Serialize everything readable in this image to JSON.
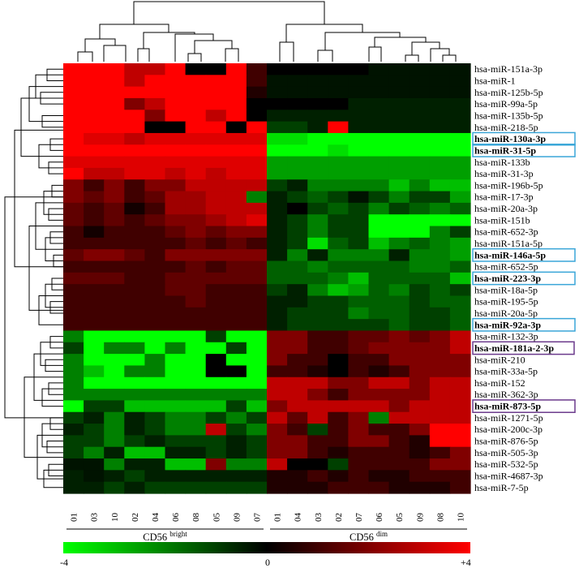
{
  "chart_data": {
    "type": "heatmap",
    "groups": [
      {
        "name": "CD56",
        "sup": "bright",
        "columns": [
          "01",
          "03",
          "10",
          "02",
          "04",
          "06",
          "08",
          "05",
          "09",
          "07"
        ]
      },
      {
        "name": "CD56",
        "sup": "dim",
        "columns": [
          "01",
          "04",
          "03",
          "02",
          "07",
          "06",
          "05",
          "09",
          "08",
          "10"
        ]
      }
    ],
    "columns": [
      "01",
      "03",
      "10",
      "02",
      "04",
      "06",
      "08",
      "05",
      "09",
      "07",
      "01",
      "04",
      "03",
      "02",
      "07",
      "06",
      "05",
      "09",
      "08",
      "10"
    ],
    "rows": [
      "hsa-miR-151a-3p",
      "hsa-miR-1",
      "hsa-miR-125b-5p",
      "hsa-miR-99a-5p",
      "hsa-miR-135b-5p",
      "hsa-miR-218-5p",
      "hsa-miR-130a-3p",
      "hsa-miR-31-5p",
      "hsa-miR-133b",
      "hsa-miR-31-3p",
      "hsa-miR-196b-5p",
      "hsa-miR-17-3p",
      "hsa-miR-20a-3p",
      "hsa-miR-151b",
      "hsa-miR-652-3p",
      "hsa-miR-151a-5p",
      "hsa-miR-146a-5p",
      "hsa-miR-652-5p",
      "hsa-miR-223-3p",
      "hsa-miR-18a-5p",
      "hsa-miR-195-5p",
      "hsa-miR-20a-5p",
      "hsa-miR-92a-3p",
      "hsa-miR-132-3p",
      "hsa-miR-181a-2-3p",
      "hsa-miR-210",
      "hsa-miR-33a-5p",
      "hsa-miR-152",
      "hsa-miR-362-3p",
      "hsa-miR-873-5p",
      "hsa-miR-1271-5p",
      "hsa-miR-200c-3p",
      "hsa-miR-876-5p",
      "hsa-miR-505-3p",
      "hsa-miR-532-5p",
      "hsa-miR-4687-3p",
      "hsa-miR-7-5p"
    ],
    "highlighted_rows": [
      {
        "label": "hsa-miR-130a-3p",
        "color": "#3aa6d8"
      },
      {
        "label": "hsa-miR-31-5p",
        "color": "#3aa6d8"
      },
      {
        "label": "hsa-miR-146a-5p",
        "color": "#3aa6d8"
      },
      {
        "label": "hsa-miR-223-3p",
        "color": "#3aa6d8"
      },
      {
        "label": "hsa-miR-92a-3p",
        "color": "#3aa6d8"
      },
      {
        "label": "hsa-miR-181a-2-3p",
        "color": "#6b3a8c"
      },
      {
        "label": "hsa-miR-873-5p",
        "color": "#6b3a8c"
      }
    ],
    "values": [
      [
        4,
        4,
        4,
        3,
        3,
        4,
        0,
        0,
        4,
        1,
        0,
        0,
        0,
        0,
        0,
        -0.3,
        -0.3,
        -0.3,
        -0.3,
        -0.3
      ],
      [
        4,
        4,
        4,
        3,
        4,
        4,
        4,
        4,
        4,
        1,
        -0.3,
        -0.3,
        -0.3,
        -0.3,
        -0.3,
        -0.3,
        -0.3,
        -0.3,
        -0.3,
        -0.3
      ],
      [
        4,
        4,
        4,
        4,
        4,
        4,
        4,
        4,
        4,
        0.5,
        -0.3,
        -0.3,
        -0.3,
        -0.3,
        -0.3,
        -0.3,
        -0.3,
        -0.3,
        -0.3,
        -0.3
      ],
      [
        4,
        4,
        4,
        2,
        3,
        4,
        4,
        4,
        4,
        0,
        0,
        0,
        0,
        0,
        -0.5,
        -0.5,
        -0.5,
        -0.5,
        -0.5,
        -0.5
      ],
      [
        4,
        4,
        4,
        4,
        2,
        4,
        4,
        3,
        4,
        0,
        -0.5,
        -0.5,
        -0.5,
        -0.5,
        -0.5,
        -0.5,
        -0.5,
        -0.5,
        -0.5,
        -0.5
      ],
      [
        4,
        4,
        4,
        4,
        0,
        0,
        4,
        4,
        0,
        4,
        -1,
        -1,
        -0.5,
        4,
        -0.5,
        -0.5,
        -0.5,
        -0.5,
        -0.5,
        -0.5
      ],
      [
        4,
        3.5,
        3.5,
        3,
        3.5,
        3.5,
        3.5,
        3.5,
        3.5,
        3.5,
        -3.5,
        -3.5,
        -4,
        -4,
        -4,
        -4,
        -4,
        -4,
        -4,
        -4
      ],
      [
        4,
        4,
        4,
        4,
        4,
        4,
        4,
        4,
        4,
        4,
        -4,
        -4,
        -4,
        -3.5,
        -4,
        -4,
        -4,
        -4,
        -4,
        -4
      ],
      [
        3.5,
        3.5,
        3.5,
        3.5,
        3.5,
        3.5,
        3.5,
        3.5,
        3.5,
        3.5,
        -2.5,
        -2.5,
        -2.5,
        -2.5,
        -2.5,
        -2.5,
        -2.5,
        -2.5,
        -2.5,
        -2.5
      ],
      [
        4,
        3,
        3,
        3.5,
        3.5,
        3,
        3.5,
        3,
        3.5,
        3.5,
        -2.5,
        -2.5,
        -2.5,
        -2.5,
        -2.5,
        -2.5,
        -2.5,
        -2.5,
        -2.5,
        -2.5
      ],
      [
        2,
        1,
        2,
        1,
        2,
        2,
        3,
        3,
        3,
        3,
        -1,
        -0.5,
        -2,
        -2,
        -2,
        -2,
        -3,
        -2,
        -3,
        -3
      ],
      [
        2,
        1.5,
        2,
        1,
        1.5,
        2.5,
        2.5,
        3,
        3,
        -2,
        -0.5,
        -1,
        -1.5,
        -1,
        -0.3,
        -1,
        -2,
        -1,
        -1,
        -2.5
      ],
      [
        1.5,
        1,
        1.5,
        0.3,
        1,
        2.5,
        2.5,
        3,
        3,
        3,
        -0.5,
        0,
        -1,
        -1.5,
        -1,
        -2,
        -1,
        -1.5,
        -2,
        -1.5
      ],
      [
        1.5,
        1,
        1.5,
        1,
        1.5,
        2,
        2,
        2.5,
        3,
        3.5,
        -0.5,
        -1,
        -2,
        -1,
        -1,
        -4,
        -4,
        -4,
        -4,
        -4
      ],
      [
        1,
        0.3,
        1,
        1,
        1,
        1.5,
        2,
        1.5,
        2,
        2,
        -0.5,
        -1,
        -2,
        -1,
        -1,
        -4,
        -4,
        -4,
        -2,
        -1
      ],
      [
        1,
        1,
        1,
        1,
        1,
        1,
        1.5,
        1,
        1.5,
        1,
        -0.5,
        -1,
        -3.5,
        -1.5,
        -1,
        -3,
        -2,
        -1.5,
        -2,
        -2.5
      ],
      [
        1.5,
        2,
        2,
        1.5,
        1,
        2,
        2,
        2,
        2,
        2,
        -0.5,
        -2,
        -0.5,
        -2,
        -2,
        -2,
        -0.5,
        -2,
        -2,
        -2.5
      ],
      [
        1,
        1,
        1,
        1,
        1,
        1,
        1.5,
        1,
        1.5,
        1.5,
        -1.5,
        -1.5,
        -2,
        -1.5,
        -1.5,
        -1.5,
        -1.5,
        -2,
        -2,
        -1.5
      ],
      [
        1.5,
        1.5,
        1.5,
        1,
        1,
        1.5,
        1.5,
        1.5,
        1.5,
        1.5,
        -1.5,
        -1.5,
        -1.5,
        -2,
        -3,
        -1.5,
        -1.5,
        -1.5,
        -1.5,
        -3
      ],
      [
        1,
        1,
        1,
        1,
        1,
        1.5,
        1.5,
        1,
        1,
        1,
        -1,
        -0.5,
        -2,
        -3,
        -2.5,
        -1.5,
        -2,
        -1,
        -1.5,
        -1
      ],
      [
        1,
        1,
        1,
        1,
        1,
        1,
        1.5,
        1,
        1,
        1,
        -0.5,
        -0.5,
        -1,
        -1,
        -1.5,
        -1.5,
        -1.5,
        -1,
        -1.5,
        -1.5
      ],
      [
        1,
        1,
        1,
        1,
        1,
        1,
        1,
        1,
        1,
        1,
        -0.5,
        -1,
        -1,
        -1,
        -2,
        -1.5,
        -1.5,
        -1,
        -1,
        -1.5
      ],
      [
        1,
        1,
        1,
        1,
        1,
        1,
        1,
        1,
        1,
        1,
        -0.5,
        -1,
        -1,
        -1,
        -1,
        -1,
        -1.5,
        -1,
        -1,
        -1.5
      ],
      [
        -2,
        -4,
        -4,
        -4,
        -4,
        -4,
        -4,
        -1,
        -4,
        -4,
        2,
        2,
        1,
        1,
        1.5,
        1.5,
        2,
        1.5,
        2,
        3
      ],
      [
        -1,
        -4,
        -2,
        -2,
        -4,
        -2,
        -4,
        -4,
        -1,
        -4,
        2,
        2,
        1,
        1,
        1.5,
        2,
        2,
        2,
        2,
        3
      ],
      [
        -2,
        -4,
        -4,
        -4,
        -2,
        -4,
        -4,
        0,
        -4,
        -4,
        2,
        1,
        1,
        0,
        1,
        1,
        2,
        2,
        2,
        2
      ],
      [
        -2,
        -3,
        -4,
        -2,
        -2,
        -4,
        -4,
        0,
        0,
        -4,
        1,
        1,
        0.5,
        0,
        1,
        0.5,
        1,
        2,
        2,
        2
      ],
      [
        -2,
        -4,
        -4,
        -4,
        -4,
        -4,
        -4,
        -4,
        -4,
        -4,
        3,
        3,
        3,
        2,
        2,
        3,
        3,
        2,
        3,
        3
      ],
      [
        -2,
        -2,
        -2,
        -2,
        -2,
        -2,
        -2,
        -2,
        -2,
        -2,
        3,
        3,
        2,
        1,
        2,
        2,
        2,
        2,
        3,
        3
      ],
      [
        -4,
        -1,
        -1,
        -3,
        -3,
        -3,
        -3,
        -3,
        -1,
        -3,
        2,
        3,
        3,
        3,
        3,
        3,
        2,
        3,
        3,
        3
      ],
      [
        -1,
        -0.5,
        -2,
        -0.5,
        -1,
        -2,
        -2,
        -1,
        -2,
        -1,
        3,
        1.5,
        3,
        1,
        2,
        -2,
        3,
        3,
        3,
        3
      ],
      [
        -0.5,
        -1,
        -2,
        -0.5,
        -1,
        -2,
        -2,
        3,
        -1,
        -2,
        2,
        1,
        -1,
        1,
        2,
        1,
        1,
        2,
        4,
        4
      ],
      [
        -1,
        -1,
        -2,
        -1,
        -0.5,
        -1,
        -1,
        -1,
        -0.5,
        -1,
        2,
        2,
        1,
        1,
        2,
        2,
        1,
        0.5,
        4,
        4
      ],
      [
        -1,
        -2,
        -0.5,
        -3,
        -3,
        -0.5,
        -0.5,
        -1,
        -0.5,
        -1,
        2,
        2,
        1,
        0.5,
        1,
        1,
        1,
        0.5,
        1,
        2
      ],
      [
        -0.3,
        -0.3,
        -2,
        -0.5,
        -0.5,
        -3,
        -3,
        2,
        -2,
        -2,
        3,
        0,
        0,
        -1,
        1,
        1,
        1,
        1,
        2,
        2
      ],
      [
        -0.5,
        -0.3,
        -0.5,
        -1,
        -0.5,
        -0.5,
        -0.5,
        -0.5,
        -0.5,
        -0.5,
        0.5,
        0.5,
        1,
        0.5,
        1,
        0.5,
        0.5,
        1,
        1,
        1
      ],
      [
        -0.5,
        -0.5,
        -1,
        -0.5,
        -1,
        -1,
        -1,
        -1,
        -1,
        -1,
        0.5,
        0.5,
        0.5,
        1,
        1,
        1,
        0.5,
        0.5,
        0.5,
        1
      ]
    ],
    "color_scale": {
      "min": -4,
      "mid": 0,
      "max": 4,
      "low_color": "#00ff00",
      "mid_color": "#000000",
      "high_color": "#ff0000"
    },
    "scale_labels": [
      "-4",
      "0",
      "+4"
    ]
  }
}
